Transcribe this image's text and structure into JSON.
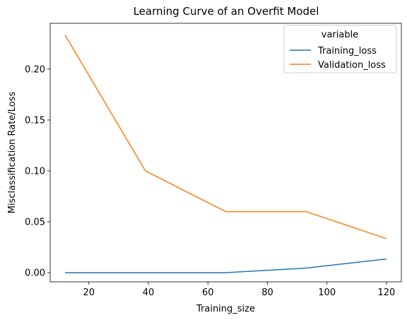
{
  "chart_data": {
    "type": "line",
    "title": "Learning Curve of an Overfit Model",
    "xlabel": "Training_size",
    "ylabel": "Misclassification Rate/Loss",
    "x": [
      12,
      39,
      66,
      93,
      120
    ],
    "xlim": [
      7,
      125
    ],
    "ylim": [
      -0.009,
      0.245
    ],
    "xticks": [
      20,
      40,
      60,
      80,
      100,
      120
    ],
    "yticks": [
      0.0,
      0.05,
      0.1,
      0.15,
      0.2
    ],
    "ytick_labels": [
      "0.00",
      "0.05",
      "0.10",
      "0.15",
      "0.20"
    ],
    "grid": false,
    "legend": {
      "title": "variable",
      "placement": "top-right"
    },
    "series": [
      {
        "name": "Training_loss",
        "color": "#1f77b4",
        "values": [
          0.0,
          0.0,
          0.0,
          0.0045,
          0.0135
        ]
      },
      {
        "name": "Validation_loss",
        "color": "#ff7f0e",
        "values": [
          0.2335,
          0.1,
          0.06,
          0.06,
          0.0335
        ]
      }
    ]
  }
}
